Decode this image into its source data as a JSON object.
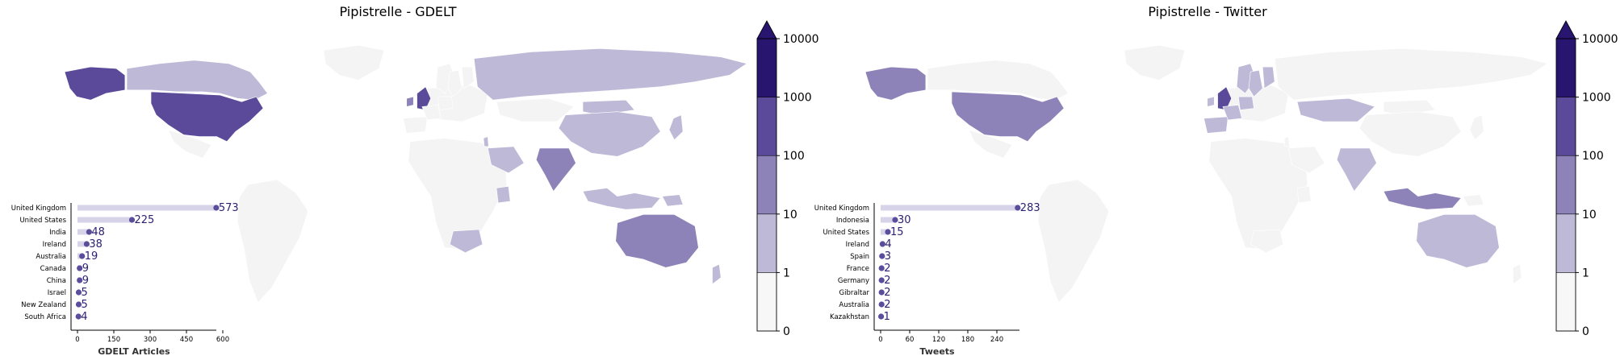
{
  "chart_data": [
    {
      "type": "choropleth-map",
      "title": "Pipistrelle - GDELT",
      "colorbar": {
        "ticks": [
          "0",
          "1",
          "10",
          "100",
          "1000",
          "10000"
        ],
        "bins": [
          0,
          1,
          10,
          100,
          1000,
          10000
        ],
        "colors": [
          "#f7f7f7",
          "#bdb9d7",
          "#8d83b8",
          "#5a4a99",
          "#281570"
        ],
        "extend": "max"
      },
      "inset": {
        "type": "bar",
        "orientation": "horizontal",
        "xlabel": "GDELT Articles",
        "xticks": [
          0,
          150,
          300,
          450,
          600
        ],
        "xlim": [
          0,
          600
        ],
        "categories": [
          "United Kingdom",
          "United States",
          "India",
          "Ireland",
          "Australia",
          "Canada",
          "China",
          "Israel",
          "New Zealand",
          "South Africa"
        ],
        "values": [
          573,
          225,
          48,
          38,
          19,
          9,
          9,
          5,
          5,
          4
        ],
        "value_labels": [
          "573",
          "225",
          "48",
          "38",
          "19",
          "9",
          "9",
          "5",
          "5",
          "4"
        ]
      },
      "regions": [
        {
          "name": "United States",
          "value": 225
        },
        {
          "name": "Alaska",
          "value": 225
        },
        {
          "name": "Canada",
          "value": 9
        },
        {
          "name": "United Kingdom",
          "value": 573
        },
        {
          "name": "Ireland",
          "value": 38
        },
        {
          "name": "India",
          "value": 48
        },
        {
          "name": "Australia",
          "value": 19
        },
        {
          "name": "China",
          "value": 9
        },
        {
          "name": "Russia",
          "value": 2
        },
        {
          "name": "South Africa",
          "value": 4
        },
        {
          "name": "New Zealand",
          "value": 5
        },
        {
          "name": "Mongolia",
          "value": 2
        },
        {
          "name": "Saudi Arabia",
          "value": 2
        },
        {
          "name": "Israel",
          "value": 5
        },
        {
          "name": "Greenland",
          "value": 0
        },
        {
          "name": "Japan",
          "value": 2
        },
        {
          "name": "Indonesia",
          "value": 2
        },
        {
          "name": "Kenya",
          "value": 2
        },
        {
          "name": "Papua New Guinea",
          "value": 2
        },
        {
          "name": "Kazakhstan",
          "value": 0
        }
      ]
    },
    {
      "type": "choropleth-map",
      "title": "Pipistrelle - Twitter",
      "colorbar": {
        "ticks": [
          "0",
          "1",
          "10",
          "100",
          "1000",
          "10000"
        ],
        "bins": [
          0,
          1,
          10,
          100,
          1000,
          10000
        ],
        "colors": [
          "#f7f7f7",
          "#bdb9d7",
          "#8d83b8",
          "#5a4a99",
          "#281570"
        ],
        "extend": "max"
      },
      "inset": {
        "type": "bar",
        "orientation": "horizontal",
        "xlabel": "Tweets",
        "xticks": [
          0,
          60,
          120,
          180,
          240
        ],
        "xlim": [
          0,
          300
        ],
        "categories": [
          "United Kingdom",
          "Indonesia",
          "United States",
          "Ireland",
          "Spain",
          "France",
          "Germany",
          "Gibraltar",
          "Australia",
          "Kazakhstan"
        ],
        "values": [
          283,
          30,
          15,
          4,
          3,
          2,
          2,
          2,
          2,
          1
        ],
        "value_labels": [
          "283",
          "30",
          "15",
          "4",
          "3",
          "2",
          "2",
          "2",
          "2",
          "1"
        ]
      },
      "regions": [
        {
          "name": "United States",
          "value": 15
        },
        {
          "name": "Alaska",
          "value": 15
        },
        {
          "name": "Canada",
          "value": 0
        },
        {
          "name": "United Kingdom",
          "value": 283
        },
        {
          "name": "Ireland",
          "value": 4
        },
        {
          "name": "Spain",
          "value": 3
        },
        {
          "name": "France",
          "value": 2
        },
        {
          "name": "Germany",
          "value": 2
        },
        {
          "name": "Indonesia",
          "value": 30
        },
        {
          "name": "Australia",
          "value": 2
        },
        {
          "name": "Kazakhstan",
          "value": 1
        },
        {
          "name": "India",
          "value": 2
        },
        {
          "name": "Russia",
          "value": 0
        },
        {
          "name": "China",
          "value": 0
        },
        {
          "name": "Greenland",
          "value": 0
        },
        {
          "name": "Africa",
          "value": 0
        },
        {
          "name": "South America",
          "value": 0
        },
        {
          "name": "Norway",
          "value": 2
        },
        {
          "name": "Sweden",
          "value": 2
        },
        {
          "name": "Finland",
          "value": 2
        }
      ]
    }
  ]
}
